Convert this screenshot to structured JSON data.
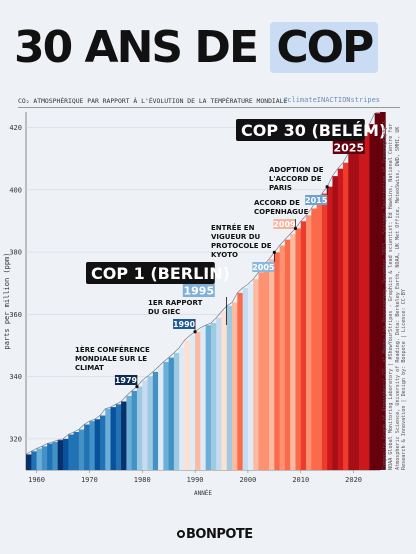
{
  "title": {
    "main": "30 ANS DE",
    "highlight": "COP"
  },
  "subtitle": "CO₂ ATMOSPHÉRIQUE PAR RAPPORT À L'ÉVOLUTION DE LA TEMPÉRATURE MONDIALE",
  "hashtag": "#climateINACTIONstripes",
  "credits": "Composite Graph of Atmospheric CO₂ at Mauna Loa Observatory, December 2023 - Scripps Institution of Oceanography & NOAA Global Monitoring Laboratory | #ShowYourStripes - Graphics & lead scientist: Ed Hawkins, National Centre for Atmospheric Science, University of Reading. Data: Berkeley Earth, NOAA, UK Met Office, MeteoSwiss, DWD, SMHI, UK Research & Innovation | Design by: Bonpote | Licence: CC-BY",
  "logo": "BONPOTE",
  "chart_data": {
    "type": "area",
    "xlabel": "ANNÉE",
    "ylabel": "parts per million (ppm)",
    "xlim": [
      1958,
      2025
    ],
    "ylim": [
      310,
      425
    ],
    "xticks": [
      1960,
      1970,
      1980,
      1990,
      2000,
      2010,
      2020
    ],
    "yticks": [
      320,
      340,
      360,
      380,
      400,
      420
    ],
    "years": [
      1958,
      1959,
      1960,
      1961,
      1962,
      1963,
      1964,
      1965,
      1966,
      1967,
      1968,
      1969,
      1970,
      1971,
      1972,
      1973,
      1974,
      1975,
      1976,
      1977,
      1978,
      1979,
      1980,
      1981,
      1982,
      1983,
      1984,
      1985,
      1986,
      1987,
      1988,
      1989,
      1990,
      1991,
      1992,
      1993,
      1994,
      1995,
      1996,
      1997,
      1998,
      1999,
      2000,
      2001,
      2002,
      2003,
      2004,
      2005,
      2006,
      2007,
      2008,
      2009,
      2010,
      2011,
      2012,
      2013,
      2014,
      2015,
      2016,
      2017,
      2018,
      2019,
      2020,
      2021,
      2022,
      2023,
      2024,
      2025
    ],
    "co2_ppm": [
      315.0,
      316.0,
      316.9,
      317.6,
      318.5,
      319.0,
      319.6,
      320.0,
      321.4,
      322.2,
      323.0,
      324.6,
      325.7,
      326.3,
      327.5,
      329.7,
      330.2,
      331.1,
      332.0,
      333.8,
      335.4,
      336.8,
      338.8,
      340.1,
      341.5,
      343.1,
      344.7,
      346.1,
      347.6,
      349.3,
      351.7,
      353.2,
      354.4,
      355.7,
      356.5,
      357.2,
      358.9,
      360.9,
      362.7,
      363.8,
      366.9,
      368.5,
      369.7,
      371.3,
      373.5,
      375.9,
      377.7,
      379.9,
      382.1,
      384.0,
      385.8,
      387.6,
      389.9,
      391.8,
      394.0,
      396.7,
      398.8,
      401.0,
      404.4,
      406.8,
      408.7,
      411.7,
      414.2,
      416.4,
      418.5,
      421.1,
      424.6,
      427.0
    ],
    "stripe_colors": [
      "#08306b",
      "#2171b5",
      "#6baed6",
      "#4292c6",
      "#2171b5",
      "#4292c6",
      "#08306b",
      "#08519c",
      "#2171b5",
      "#2171b5",
      "#4292c6",
      "#2171b5",
      "#4292c6",
      "#08519c",
      "#2171b5",
      "#6baed6",
      "#08519c",
      "#2171b5",
      "#08306b",
      "#6baed6",
      "#4292c6",
      "#9ecae1",
      "#c6dbef",
      "#9ecae1",
      "#4292c6",
      "#deebf7",
      "#6baed6",
      "#4292c6",
      "#9ecae1",
      "#deebf7",
      "#fee0d2",
      "#deebf7",
      "#fcbba1",
      "#deebf7",
      "#6baed6",
      "#9ecae1",
      "#c6dbef",
      "#fee0d2",
      "#9ecae1",
      "#fcbba1",
      "#fb6a4a",
      "#c6dbef",
      "#deebf7",
      "#fcbba1",
      "#fc9272",
      "#fc9272",
      "#fcbba1",
      "#fb6a4a",
      "#fc9272",
      "#fb6a4a",
      "#fcbba1",
      "#fb6a4a",
      "#ef3b2c",
      "#fc9272",
      "#fb6a4a",
      "#fb6a4a",
      "#ef3b2c",
      "#cb181d",
      "#a50f15",
      "#cb181d",
      "#ef3b2c",
      "#a50f15",
      "#a50f15",
      "#cb181d",
      "#cb181d",
      "#67000d",
      "#67000d",
      "#67000d"
    ],
    "annotations": [
      {
        "text": "1ÈRE CONFÉRENCE MONDIALE SUR LE CLIMAT",
        "year_label": "1979",
        "x": 1979,
        "style": "small",
        "badge_color": "#0b2a55"
      },
      {
        "text": "1ER RAPPORT DU GIEC",
        "year_label": "1990",
        "x": 1990,
        "style": "small",
        "badge_color": "#1d5a96"
      },
      {
        "text": "COP 1 (BERLIN)",
        "year_label": "1995",
        "x": 1995,
        "style": "big",
        "badge_color": "#7fb0d8"
      },
      {
        "text": "ENTRÉE EN VIGUEUR DU PROTOCOLE DE KYOTO",
        "year_label": "2005",
        "x": 2005,
        "style": "small",
        "badge_color": "#8cb8dc"
      },
      {
        "text": "ACCORD DE COPENHAGUE",
        "year_label": "2009",
        "x": 2009,
        "style": "small",
        "badge_color": "#f6b39d"
      },
      {
        "text": "ADOPTION DE L'ACCORD DE PARIS",
        "year_label": "2015",
        "x": 2015,
        "style": "small",
        "badge_color": "#6ea3cf"
      },
      {
        "text": "COP 30 (BELÉM)",
        "year_label": "2025",
        "x": 2025,
        "style": "big",
        "badge_color": "#67000d"
      }
    ]
  }
}
